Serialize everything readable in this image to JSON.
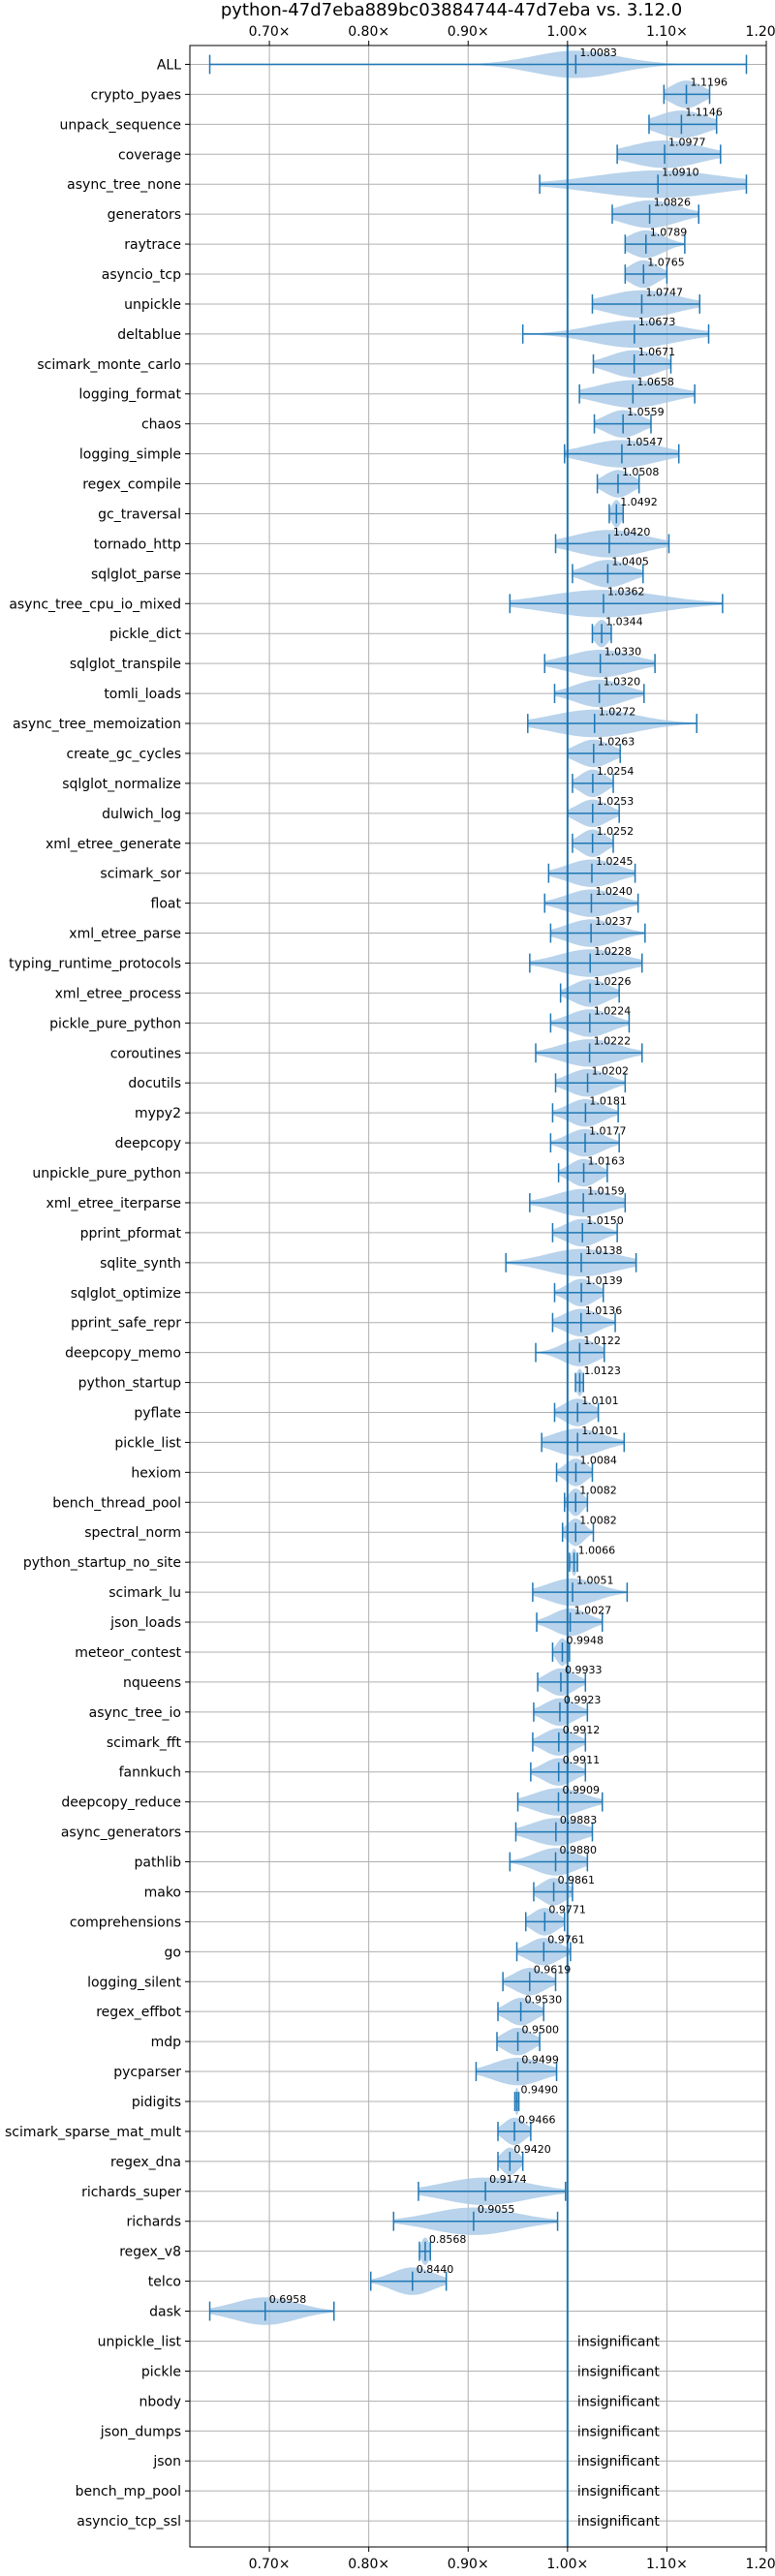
{
  "chart_data": {
    "type": "violin",
    "title": "python-47d7eba889bc03884744-47d7eba vs. 3.12.0",
    "xlim": [
      0.62,
      1.2
    ],
    "x_ticks": [
      0.7,
      0.8,
      0.9,
      1.0,
      1.1,
      1.2
    ],
    "x_tick_labels": [
      "0.70×",
      "0.80×",
      "0.90×",
      "1.00×",
      "1.10×",
      "1.20×"
    ],
    "x_tick_positions": [
      "top",
      "bottom"
    ],
    "grid": true,
    "reference_line": 1.0,
    "colors": {
      "violin": "#a6c8e6",
      "line": "#1f77b4",
      "grid": "#b0b0b0"
    },
    "insignificant_text": "insignificant",
    "benchmarks": [
      {
        "name": "ALL",
        "value": "1.0083",
        "mean": 1.0083,
        "min": 0.64,
        "max": 1.18,
        "spread": 0.06
      },
      {
        "name": "crypto_pyaes",
        "value": "1.1196",
        "mean": 1.1196,
        "min": 1.097,
        "max": 1.143,
        "spread": 0.022
      },
      {
        "name": "unpack_sequence",
        "value": "1.1146",
        "mean": 1.1146,
        "min": 1.082,
        "max": 1.15,
        "spread": 0.035
      },
      {
        "name": "coverage",
        "value": "1.0977",
        "mean": 1.0977,
        "min": 1.05,
        "max": 1.154,
        "spread": 0.05
      },
      {
        "name": "async_tree_none",
        "value": "1.0910",
        "mean": 1.091,
        "min": 0.972,
        "max": 1.18,
        "spread": 0.09
      },
      {
        "name": "generators",
        "value": "1.0826",
        "mean": 1.0826,
        "min": 1.045,
        "max": 1.132,
        "spread": 0.04
      },
      {
        "name": "raytrace",
        "value": "1.0789",
        "mean": 1.0789,
        "min": 1.058,
        "max": 1.118,
        "spread": 0.025
      },
      {
        "name": "asyncio_tcp",
        "value": "1.0765",
        "mean": 1.0765,
        "min": 1.058,
        "max": 1.1,
        "spread": 0.02
      },
      {
        "name": "unpickle",
        "value": "1.0747",
        "mean": 1.0747,
        "min": 1.025,
        "max": 1.133,
        "spread": 0.05
      },
      {
        "name": "deltablue",
        "value": "1.0673",
        "mean": 1.0673,
        "min": 0.955,
        "max": 1.142,
        "spread": 0.06
      },
      {
        "name": "scimark_monte_carlo",
        "value": "1.0671",
        "mean": 1.0671,
        "min": 1.026,
        "max": 1.104,
        "spread": 0.035
      },
      {
        "name": "logging_format",
        "value": "1.0658",
        "mean": 1.0658,
        "min": 1.012,
        "max": 1.128,
        "spread": 0.05
      },
      {
        "name": "chaos",
        "value": "1.0559",
        "mean": 1.0559,
        "min": 1.027,
        "max": 1.084,
        "spread": 0.025
      },
      {
        "name": "logging_simple",
        "value": "1.0547",
        "mean": 1.0547,
        "min": 0.997,
        "max": 1.112,
        "spread": 0.05
      },
      {
        "name": "regex_compile",
        "value": "1.0508",
        "mean": 1.0508,
        "min": 1.03,
        "max": 1.072,
        "spread": 0.02
      },
      {
        "name": "gc_traversal",
        "value": "1.0492",
        "mean": 1.0492,
        "min": 1.042,
        "max": 1.056,
        "spread": 0.007
      },
      {
        "name": "tornado_http",
        "value": "1.0420",
        "mean": 1.042,
        "min": 0.988,
        "max": 1.102,
        "spread": 0.05
      },
      {
        "name": "sqlglot_parse",
        "value": "1.0405",
        "mean": 1.0405,
        "min": 1.005,
        "max": 1.076,
        "spread": 0.03
      },
      {
        "name": "async_tree_cpu_io_mixed",
        "value": "1.0362",
        "mean": 1.0362,
        "min": 0.942,
        "max": 1.156,
        "spread": 0.08
      },
      {
        "name": "pickle_dict",
        "value": "1.0344",
        "mean": 1.0344,
        "min": 1.025,
        "max": 1.044,
        "spread": 0.01
      },
      {
        "name": "sqlglot_transpile",
        "value": "1.0330",
        "mean": 1.033,
        "min": 0.977,
        "max": 1.088,
        "spread": 0.045
      },
      {
        "name": "tomli_loads",
        "value": "1.0320",
        "mean": 1.032,
        "min": 0.987,
        "max": 1.077,
        "spread": 0.035
      },
      {
        "name": "async_tree_memoization",
        "value": "1.0272",
        "mean": 1.0272,
        "min": 0.96,
        "max": 1.13,
        "spread": 0.06
      },
      {
        "name": "create_gc_cycles",
        "value": "1.0263",
        "mean": 1.0263,
        "min": 1.0,
        "max": 1.053,
        "spread": 0.025
      },
      {
        "name": "sqlglot_normalize",
        "value": "1.0254",
        "mean": 1.0254,
        "min": 1.005,
        "max": 1.046,
        "spread": 0.018
      },
      {
        "name": "dulwich_log",
        "value": "1.0253",
        "mean": 1.0253,
        "min": 1.0,
        "max": 1.052,
        "spread": 0.022
      },
      {
        "name": "xml_etree_generate",
        "value": "1.0252",
        "mean": 1.0252,
        "min": 1.005,
        "max": 1.046,
        "spread": 0.018
      },
      {
        "name": "scimark_sor",
        "value": "1.0245",
        "mean": 1.0245,
        "min": 0.981,
        "max": 1.068,
        "spread": 0.035
      },
      {
        "name": "float",
        "value": "1.0240",
        "mean": 1.024,
        "min": 0.977,
        "max": 1.071,
        "spread": 0.035
      },
      {
        "name": "xml_etree_parse",
        "value": "1.0237",
        "mean": 1.0237,
        "min": 0.983,
        "max": 1.078,
        "spread": 0.035
      },
      {
        "name": "typing_runtime_protocols",
        "value": "1.0228",
        "mean": 1.0228,
        "min": 0.962,
        "max": 1.075,
        "spread": 0.045
      },
      {
        "name": "xml_etree_process",
        "value": "1.0226",
        "mean": 1.0226,
        "min": 0.993,
        "max": 1.052,
        "spread": 0.025
      },
      {
        "name": "pickle_pure_python",
        "value": "1.0224",
        "mean": 1.0224,
        "min": 0.983,
        "max": 1.062,
        "spread": 0.03
      },
      {
        "name": "coroutines",
        "value": "1.0222",
        "mean": 1.0222,
        "min": 0.968,
        "max": 1.075,
        "spread": 0.04
      },
      {
        "name": "docutils",
        "value": "1.0202",
        "mean": 1.0202,
        "min": 0.988,
        "max": 1.058,
        "spread": 0.028
      },
      {
        "name": "mypy2",
        "value": "1.0181",
        "mean": 1.0181,
        "min": 0.985,
        "max": 1.051,
        "spread": 0.025
      },
      {
        "name": "deepcopy",
        "value": "1.0177",
        "mean": 1.0177,
        "min": 0.983,
        "max": 1.052,
        "spread": 0.025
      },
      {
        "name": "unpickle_pure_python",
        "value": "1.0163",
        "mean": 1.0163,
        "min": 0.991,
        "max": 1.04,
        "spread": 0.02
      },
      {
        "name": "xml_etree_iterparse",
        "value": "1.0159",
        "mean": 1.0159,
        "min": 0.962,
        "max": 1.058,
        "spread": 0.04
      },
      {
        "name": "pprint_pformat",
        "value": "1.0150",
        "mean": 1.015,
        "min": 0.985,
        "max": 1.05,
        "spread": 0.025
      },
      {
        "name": "sqlite_synth",
        "value": "1.0138",
        "mean": 1.0138,
        "min": 0.938,
        "max": 1.069,
        "spread": 0.05
      },
      {
        "name": "sqlglot_optimize",
        "value": "1.0139",
        "mean": 1.0139,
        "min": 0.987,
        "max": 1.036,
        "spread": 0.02
      },
      {
        "name": "pprint_safe_repr",
        "value": "1.0136",
        "mean": 1.0136,
        "min": 0.985,
        "max": 1.048,
        "spread": 0.025
      },
      {
        "name": "deepcopy_memo",
        "value": "1.0122",
        "mean": 1.0122,
        "min": 0.968,
        "max": 1.037,
        "spread": 0.025
      },
      {
        "name": "python_startup",
        "value": "1.0123",
        "mean": 1.0123,
        "min": 1.008,
        "max": 1.016,
        "spread": 0.005
      },
      {
        "name": "pyflate",
        "value": "1.0101",
        "mean": 1.0101,
        "min": 0.987,
        "max": 1.031,
        "spread": 0.02
      },
      {
        "name": "pickle_list",
        "value": "1.0101",
        "mean": 1.0101,
        "min": 0.974,
        "max": 1.057,
        "spread": 0.035
      },
      {
        "name": "hexiom",
        "value": "1.0084",
        "mean": 1.0084,
        "min": 0.989,
        "max": 1.025,
        "spread": 0.015
      },
      {
        "name": "bench_thread_pool",
        "value": "1.0082",
        "mean": 1.0082,
        "min": 0.997,
        "max": 1.02,
        "spread": 0.01
      },
      {
        "name": "spectral_norm",
        "value": "1.0082",
        "mean": 1.0082,
        "min": 0.995,
        "max": 1.026,
        "spread": 0.012
      },
      {
        "name": "python_startup_no_site",
        "value": "1.0066",
        "mean": 1.0066,
        "min": 1.002,
        "max": 1.01,
        "spread": 0.004
      },
      {
        "name": "scimark_lu",
        "value": "1.0051",
        "mean": 1.0051,
        "min": 0.965,
        "max": 1.06,
        "spread": 0.035
      },
      {
        "name": "json_loads",
        "value": "1.0027",
        "mean": 1.0027,
        "min": 0.969,
        "max": 1.035,
        "spread": 0.025
      },
      {
        "name": "meteor_contest",
        "value": "0.9948",
        "mean": 0.9948,
        "min": 0.985,
        "max": 1.002,
        "spread": 0.008
      },
      {
        "name": "nqueens",
        "value": "0.9933",
        "mean": 0.9933,
        "min": 0.97,
        "max": 1.018,
        "spread": 0.02
      },
      {
        "name": "async_tree_io",
        "value": "0.9923",
        "mean": 0.9923,
        "min": 0.966,
        "max": 1.02,
        "spread": 0.022
      },
      {
        "name": "scimark_fft",
        "value": "0.9912",
        "mean": 0.9912,
        "min": 0.965,
        "max": 1.018,
        "spread": 0.022
      },
      {
        "name": "fannkuch",
        "value": "0.9911",
        "mean": 0.9911,
        "min": 0.963,
        "max": 1.018,
        "spread": 0.022
      },
      {
        "name": "deepcopy_reduce",
        "value": "0.9909",
        "mean": 0.9909,
        "min": 0.95,
        "max": 1.035,
        "spread": 0.035
      },
      {
        "name": "async_generators",
        "value": "0.9883",
        "mean": 0.9883,
        "min": 0.948,
        "max": 1.025,
        "spread": 0.035
      },
      {
        "name": "pathlib",
        "value": "0.9880",
        "mean": 0.988,
        "min": 0.942,
        "max": 1.02,
        "spread": 0.03
      },
      {
        "name": "mako",
        "value": "0.9861",
        "mean": 0.9861,
        "min": 0.966,
        "max": 1.005,
        "spread": 0.018
      },
      {
        "name": "comprehensions",
        "value": "0.9771",
        "mean": 0.9771,
        "min": 0.958,
        "max": 0.997,
        "spread": 0.018
      },
      {
        "name": "go",
        "value": "0.9761",
        "mean": 0.9761,
        "min": 0.949,
        "max": 1.003,
        "spread": 0.022
      },
      {
        "name": "logging_silent",
        "value": "0.9619",
        "mean": 0.9619,
        "min": 0.935,
        "max": 0.988,
        "spread": 0.022
      },
      {
        "name": "regex_effbot",
        "value": "0.9530",
        "mean": 0.953,
        "min": 0.93,
        "max": 0.976,
        "spread": 0.02
      },
      {
        "name": "mdp",
        "value": "0.9500",
        "mean": 0.95,
        "min": 0.929,
        "max": 0.972,
        "spread": 0.02
      },
      {
        "name": "pycparser",
        "value": "0.9499",
        "mean": 0.9499,
        "min": 0.908,
        "max": 0.989,
        "spread": 0.035
      },
      {
        "name": "pidigits",
        "value": "0.9490",
        "mean": 0.949,
        "min": 0.947,
        "max": 0.951,
        "spread": 0.003
      },
      {
        "name": "scimark_sparse_mat_mult",
        "value": "0.9466",
        "mean": 0.9466,
        "min": 0.93,
        "max": 0.963,
        "spread": 0.015
      },
      {
        "name": "regex_dna",
        "value": "0.9420",
        "mean": 0.942,
        "min": 0.93,
        "max": 0.955,
        "spread": 0.012
      },
      {
        "name": "richards_super",
        "value": "0.9174",
        "mean": 0.9174,
        "min": 0.85,
        "max": 0.998,
        "spread": 0.06
      },
      {
        "name": "richards",
        "value": "0.9055",
        "mean": 0.9055,
        "min": 0.825,
        "max": 0.99,
        "spread": 0.06
      },
      {
        "name": "regex_v8",
        "value": "0.8568",
        "mean": 0.8568,
        "min": 0.851,
        "max": 0.862,
        "spread": 0.006
      },
      {
        "name": "telco",
        "value": "0.8440",
        "mean": 0.844,
        "min": 0.802,
        "max": 0.878,
        "spread": 0.03
      },
      {
        "name": "dask",
        "value": "0.6958",
        "mean": 0.6958,
        "min": 0.64,
        "max": 0.765,
        "spread": 0.045
      },
      {
        "name": "unpickle_list",
        "value": "insignificant"
      },
      {
        "name": "pickle",
        "value": "insignificant"
      },
      {
        "name": "nbody",
        "value": "insignificant"
      },
      {
        "name": "json_dumps",
        "value": "insignificant"
      },
      {
        "name": "json",
        "value": "insignificant"
      },
      {
        "name": "bench_mp_pool",
        "value": "insignificant"
      },
      {
        "name": "asyncio_tcp_ssl",
        "value": "insignificant"
      }
    ]
  }
}
